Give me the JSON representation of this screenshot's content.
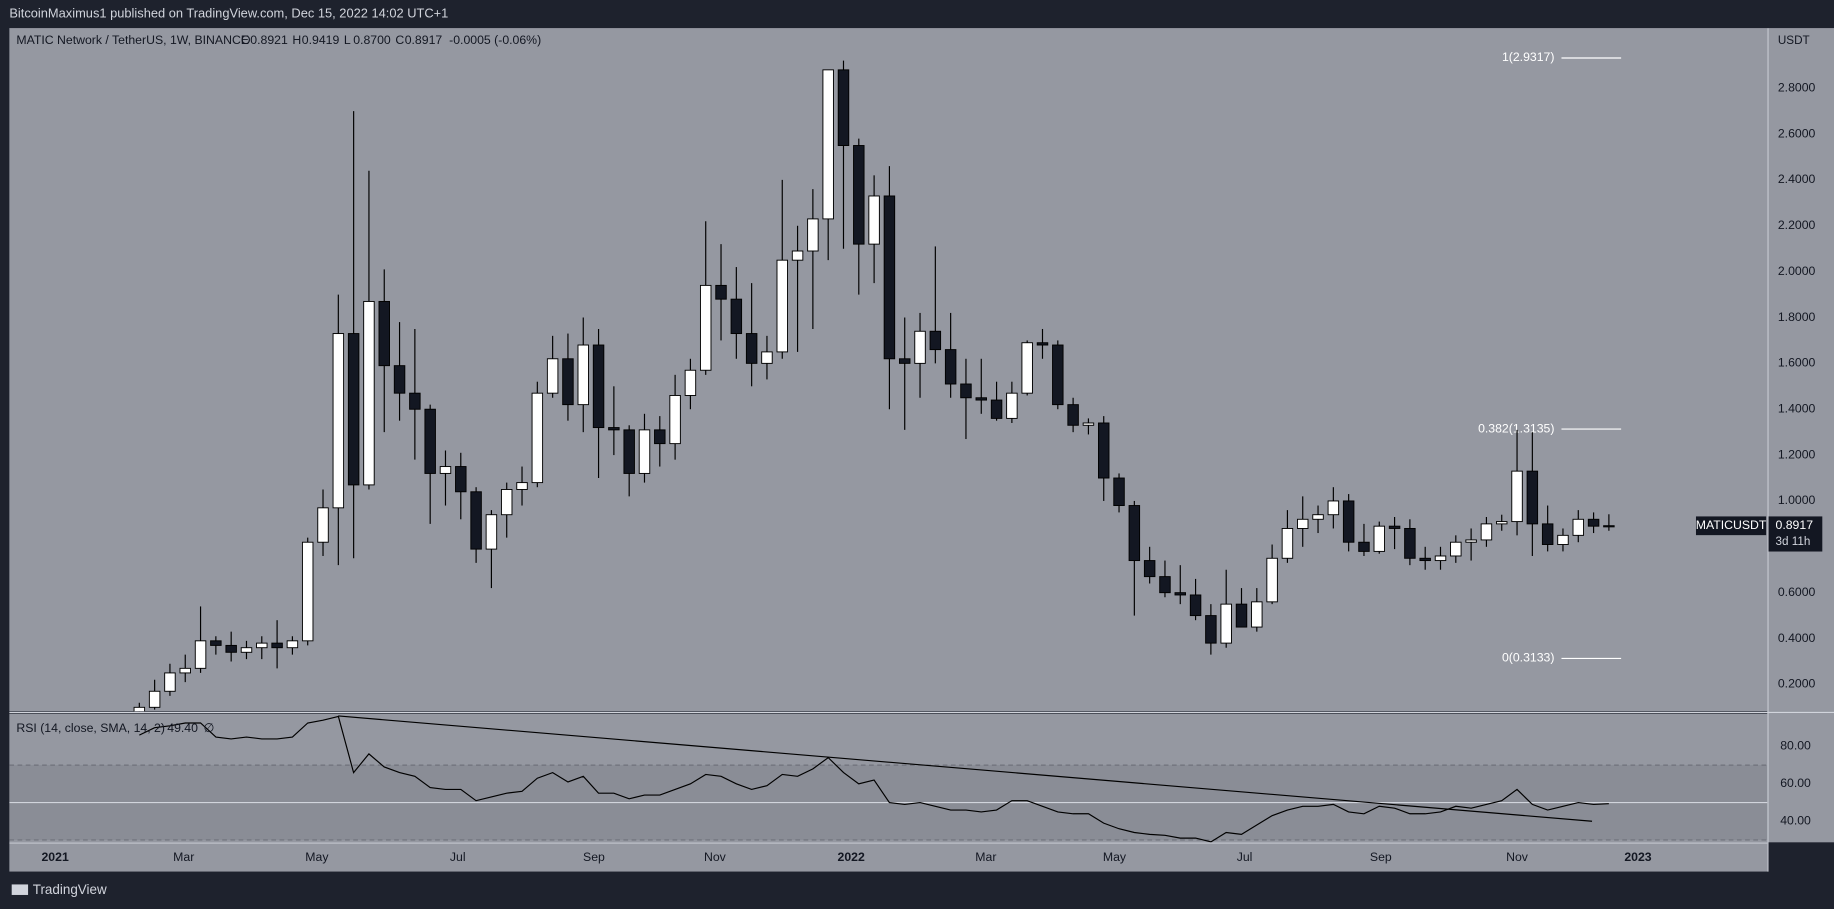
{
  "header": {
    "publisher": "BitcoinMaximus1 published on TradingView.com, Dec 15, 2022 14:02 UTC+1"
  },
  "footer": {
    "brand": "TradingView"
  },
  "chart_data": [
    {
      "type": "candlestick",
      "title": "MATIC Network / TetherUS, 1W, BINANCE",
      "legend": [
        {
          "key": "O",
          "value": "0.8921"
        },
        {
          "key": "H",
          "value": "0.9419"
        },
        {
          "key": "L",
          "value": "0.8700"
        },
        {
          "key": "C",
          "value": "0.8917"
        }
      ],
      "change": "-0.0005 (-0.06%)",
      "axis_unit": "USDT",
      "up_color": "#ffffff",
      "down_color": "#131722",
      "wick_color": "#000000",
      "open": [
        0.05,
        0.1,
        0.17,
        0.25,
        0.27,
        0.39,
        0.37,
        0.34,
        0.36,
        0.38,
        0.36,
        0.39,
        0.82,
        0.97,
        1.73,
        1.07,
        1.87,
        1.59,
        1.47,
        1.4,
        1.12,
        1.15,
        1.04,
        0.79,
        0.94,
        1.05,
        1.08,
        1.47,
        1.62,
        1.42,
        1.68,
        1.32,
        1.31,
        1.12,
        1.31,
        1.25,
        1.46,
        1.57,
        1.94,
        1.88,
        1.73,
        1.6,
        1.65,
        2.05,
        2.09,
        2.23,
        2.88,
        2.55,
        2.12,
        2.33,
        1.62,
        1.6,
        1.74,
        1.66,
        1.51,
        1.45,
        1.44,
        1.36,
        1.47,
        1.69,
        1.68,
        1.42,
        1.33,
        1.34,
        1.1,
        0.98,
        0.74,
        0.67,
        0.6,
        0.59,
        0.5,
        0.38,
        0.55,
        0.45,
        0.56,
        0.75,
        0.88,
        0.92,
        0.94,
        1.0,
        0.82,
        0.78,
        0.89,
        0.88,
        0.75,
        0.74,
        0.76,
        0.82,
        0.83,
        0.9,
        0.91,
        1.13,
        0.9,
        0.81,
        0.85,
        0.92,
        0.8921
      ],
      "high": [
        0.12,
        0.22,
        0.29,
        0.33,
        0.54,
        0.41,
        0.43,
        0.39,
        0.41,
        0.48,
        0.41,
        0.84,
        1.05,
        1.9,
        2.7,
        2.44,
        2.01,
        1.78,
        1.75,
        1.42,
        1.22,
        1.21,
        1.06,
        0.96,
        1.08,
        1.15,
        1.52,
        1.72,
        1.73,
        1.8,
        1.75,
        1.5,
        1.33,
        1.38,
        1.37,
        1.55,
        1.62,
        2.22,
        2.12,
        2.02,
        1.95,
        1.72,
        2.4,
        2.2,
        2.36,
        2.88,
        2.92,
        2.58,
        2.42,
        2.46,
        1.8,
        1.82,
        2.11,
        1.82,
        1.62,
        1.62,
        1.52,
        1.52,
        1.7,
        1.75,
        1.7,
        1.45,
        1.36,
        1.37,
        1.12,
        1.0,
        0.8,
        0.74,
        0.72,
        0.66,
        0.55,
        0.7,
        0.62,
        0.62,
        0.81,
        0.96,
        1.02,
        0.98,
        1.06,
        1.03,
        0.9,
        0.91,
        0.93,
        0.92,
        0.8,
        0.8,
        0.85,
        0.88,
        0.93,
        0.94,
        1.31,
        1.3,
        0.98,
        0.88,
        0.96,
        0.95,
        0.9419
      ],
      "low": [
        0.04,
        0.09,
        0.15,
        0.21,
        0.25,
        0.33,
        0.3,
        0.31,
        0.31,
        0.27,
        0.33,
        0.37,
        0.76,
        0.72,
        0.75,
        1.05,
        1.3,
        1.35,
        1.18,
        0.9,
        0.98,
        0.92,
        0.73,
        0.62,
        0.84,
        0.98,
        1.06,
        1.45,
        1.35,
        1.3,
        1.1,
        1.2,
        1.02,
        1.08,
        1.15,
        1.18,
        1.4,
        1.55,
        1.7,
        1.62,
        1.5,
        1.53,
        1.62,
        1.65,
        1.75,
        2.05,
        2.1,
        1.9,
        1.95,
        1.4,
        1.31,
        1.45,
        1.6,
        1.45,
        1.27,
        1.38,
        1.35,
        1.34,
        1.46,
        1.62,
        1.4,
        1.3,
        1.29,
        1.0,
        0.95,
        0.5,
        0.64,
        0.58,
        0.55,
        0.48,
        0.33,
        0.36,
        0.45,
        0.43,
        0.55,
        0.73,
        0.8,
        0.86,
        0.88,
        0.78,
        0.76,
        0.77,
        0.79,
        0.72,
        0.7,
        0.7,
        0.73,
        0.74,
        0.8,
        0.87,
        0.85,
        0.76,
        0.78,
        0.78,
        0.82,
        0.86,
        0.87
      ],
      "close": [
        0.1,
        0.17,
        0.25,
        0.27,
        0.39,
        0.37,
        0.34,
        0.36,
        0.38,
        0.36,
        0.39,
        0.82,
        0.97,
        1.73,
        1.07,
        1.87,
        1.59,
        1.47,
        1.4,
        1.12,
        1.15,
        1.04,
        0.79,
        0.94,
        1.05,
        1.08,
        1.47,
        1.62,
        1.42,
        1.68,
        1.32,
        1.31,
        1.12,
        1.31,
        1.25,
        1.46,
        1.57,
        1.94,
        1.88,
        1.73,
        1.6,
        1.65,
        2.05,
        2.09,
        2.23,
        2.88,
        2.55,
        2.12,
        2.33,
        1.62,
        1.6,
        1.74,
        1.66,
        1.51,
        1.45,
        1.44,
        1.36,
        1.47,
        1.69,
        1.68,
        1.42,
        1.33,
        1.34,
        1.1,
        0.98,
        0.74,
        0.67,
        0.6,
        0.59,
        0.5,
        0.38,
        0.55,
        0.45,
        0.56,
        0.75,
        0.88,
        0.92,
        0.94,
        1.0,
        0.82,
        0.78,
        0.89,
        0.88,
        0.75,
        0.74,
        0.76,
        0.82,
        0.83,
        0.9,
        0.91,
        1.13,
        0.9,
        0.81,
        0.85,
        0.92,
        0.89,
        0.8917
      ],
      "xlim": [
        -8.49,
        106.35
      ],
      "xticks": [
        {
          "value": -5.5,
          "label": "2021"
        },
        {
          "value": 2.9,
          "label": "Mar"
        },
        {
          "value": 11.6,
          "label": "May"
        },
        {
          "value": 20.8,
          "label": "Jul"
        },
        {
          "value": 29.7,
          "label": "Sep"
        },
        {
          "value": 37.6,
          "label": "Nov"
        },
        {
          "value": 46.5,
          "label": "2022"
        },
        {
          "value": 55.3,
          "label": "Mar"
        },
        {
          "value": 63.7,
          "label": "May"
        },
        {
          "value": 72.2,
          "label": "Jul"
        },
        {
          "value": 81.1,
          "label": "Sep"
        },
        {
          "value": 90.0,
          "label": "Nov"
        },
        {
          "value": 97.9,
          "label": "2023"
        }
      ],
      "ylim": [
        0.0878,
        3.0622
      ],
      "yticks": [
        {
          "value": 0.2,
          "label": "0.2000"
        },
        {
          "value": 0.4,
          "label": "0.4000"
        },
        {
          "value": 0.6,
          "label": "0.6000"
        },
        {
          "value": 0.8,
          "label": "0.8000"
        },
        {
          "value": 1.0,
          "label": "1.0000"
        },
        {
          "value": 1.2,
          "label": "1.2000"
        },
        {
          "value": 1.4,
          "label": "1.4000"
        },
        {
          "value": 1.6,
          "label": "1.6000"
        },
        {
          "value": 1.8,
          "label": "1.8000"
        },
        {
          "value": 2.0,
          "label": "2.0000"
        },
        {
          "value": 2.2,
          "label": "2.2000"
        },
        {
          "value": 2.4,
          "label": "2.4000"
        },
        {
          "value": 2.6,
          "label": "2.6000"
        },
        {
          "value": 2.8,
          "label": "2.8000"
        }
      ],
      "fib_levels": [
        {
          "value": 2.9317,
          "label": "1(2.9317)"
        },
        {
          "value": 1.3135,
          "label": "0.382(1.3135)"
        },
        {
          "value": 0.3133,
          "label": "0(0.3133)"
        }
      ],
      "last_price": {
        "symbol": "MATICUSDT",
        "value": 0.8917,
        "countdown": "3d 11h"
      }
    },
    {
      "type": "line",
      "title": "RSI (14, close, SMA, 14, 2)",
      "value_text": "49.40",
      "flag": "∅",
      "color": "#000000",
      "values": [
        86,
        90,
        91,
        92.5,
        92.5,
        85,
        84,
        85,
        84,
        84,
        85,
        92.5,
        94,
        96,
        66,
        76,
        69,
        66,
        64,
        58,
        57,
        57,
        51,
        53,
        55,
        56,
        63,
        66,
        61,
        64,
        55,
        55,
        52,
        54,
        54,
        57,
        60,
        65,
        64,
        60,
        57,
        59,
        65,
        64,
        68,
        74,
        66,
        60,
        62,
        50,
        49,
        50,
        48,
        46,
        46,
        45,
        46,
        51,
        51,
        48,
        45,
        44,
        44,
        39,
        36,
        34,
        33,
        32.5,
        31,
        31,
        29,
        34,
        33,
        38,
        43,
        46,
        48,
        48,
        49,
        45,
        44,
        48,
        47,
        44,
        44,
        45,
        48,
        47,
        49,
        51,
        57,
        49,
        46,
        48,
        50,
        49,
        49.4
      ],
      "ylim": [
        28.75,
        97.5
      ],
      "yticks": [
        {
          "value": 40,
          "label": "40.00"
        },
        {
          "value": 60,
          "label": "60.00"
        },
        {
          "value": 80,
          "label": "80.00"
        }
      ],
      "band": [
        30,
        70
      ],
      "midline": 50,
      "trendline": {
        "x": [
          13,
          94.9
        ],
        "values": [
          96.25,
          40
        ]
      }
    }
  ]
}
